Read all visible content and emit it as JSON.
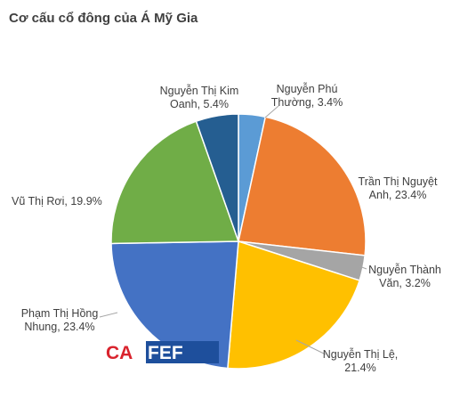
{
  "chart_data": {
    "type": "pie",
    "title": "Cơ cấu cổ đông của Á Mỹ Gia",
    "slices": [
      {
        "label_lines": [
          "Nguyễn  Phú",
          "Thường, 3.4%"
        ],
        "value": 3.4,
        "color": "#5b9bd5"
      },
      {
        "label_lines": [
          "Trần Thị Nguyệt",
          "Anh, 23.4%"
        ],
        "value": 23.4,
        "color": "#ed7d31"
      },
      {
        "label_lines": [
          "Nguyễn  Thành",
          "Văn, 3.2%"
        ],
        "value": 3.2,
        "color": "#a5a5a5"
      },
      {
        "label_lines": [
          "Nguyễn  Thị Lệ,",
          "21.4%"
        ],
        "value": 21.4,
        "color": "#ffc000"
      },
      {
        "label_lines": [
          "Phạm Thị Hồng",
          "Nhung, 23.4%"
        ],
        "value": 23.4,
        "color": "#4472c4"
      },
      {
        "label_lines": [
          "Vũ Thị Rơi, 19.9%"
        ],
        "value": 19.9,
        "color": "#70ad47"
      },
      {
        "label_lines": [
          "Nguyễn  Thị Kim",
          "Oanh, 5.4%"
        ],
        "value": 5.4,
        "color": "#255e91"
      }
    ],
    "legend": "none"
  },
  "watermark": {
    "text": "CAFEF",
    "part1": "CA",
    "part2": "FEF",
    "color_red": "#d9232d",
    "color_blue": "#1e4f9c"
  }
}
